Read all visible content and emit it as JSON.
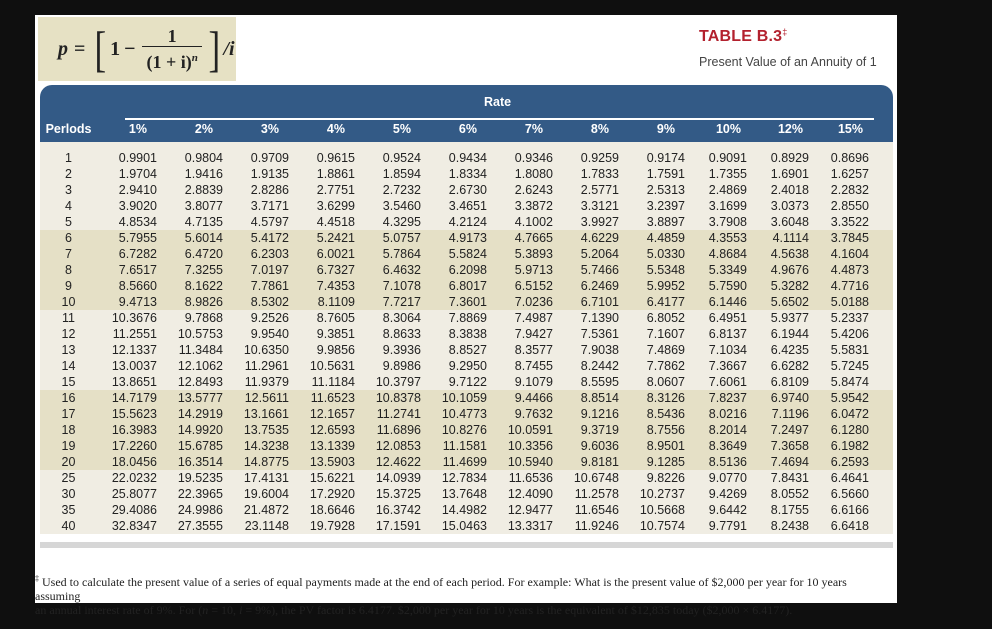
{
  "formula": {
    "lhs": "p",
    "equals": "=",
    "one": "1",
    "minus": "−",
    "numerator": "1",
    "denominator_base": "(1 + i)",
    "denominator_exp": "n",
    "tail": "/i"
  },
  "header": {
    "title": "TABLE B.3",
    "title_mark": "‡",
    "subtitle": "Present Value of an Annuity of 1"
  },
  "table": {
    "group_header": "Rate",
    "periods_header": "Perlods",
    "rates": [
      "1%",
      "2%",
      "3%",
      "4%",
      "5%",
      "6%",
      "7%",
      "8%",
      "9%",
      "10%",
      "12%",
      "15%"
    ],
    "bands": [
      {
        "shaded": false,
        "rows": [
          {
            "period": "1",
            "values": [
              "0.9901",
              "0.9804",
              "0.9709",
              "0.9615",
              "0.9524",
              "0.9434",
              "0.9346",
              "0.9259",
              "0.9174",
              "0.9091",
              "0.8929",
              "0.8696"
            ]
          },
          {
            "period": "2",
            "values": [
              "1.9704",
              "1.9416",
              "1.9135",
              "1.8861",
              "1.8594",
              "1.8334",
              "1.8080",
              "1.7833",
              "1.7591",
              "1.7355",
              "1.6901",
              "1.6257"
            ]
          },
          {
            "period": "3",
            "values": [
              "2.9410",
              "2.8839",
              "2.8286",
              "2.7751",
              "2.7232",
              "2.6730",
              "2.6243",
              "2.5771",
              "2.5313",
              "2.4869",
              "2.4018",
              "2.2832"
            ]
          },
          {
            "period": "4",
            "values": [
              "3.9020",
              "3.8077",
              "3.7171",
              "3.6299",
              "3.5460",
              "3.4651",
              "3.3872",
              "3.3121",
              "3.2397",
              "3.1699",
              "3.0373",
              "2.8550"
            ]
          },
          {
            "period": "5",
            "values": [
              "4.8534",
              "4.7135",
              "4.5797",
              "4.4518",
              "4.3295",
              "4.2124",
              "4.1002",
              "3.9927",
              "3.8897",
              "3.7908",
              "3.6048",
              "3.3522"
            ]
          }
        ]
      },
      {
        "shaded": true,
        "rows": [
          {
            "period": "6",
            "values": [
              "5.7955",
              "5.6014",
              "5.4172",
              "5.2421",
              "5.0757",
              "4.9173",
              "4.7665",
              "4.6229",
              "4.4859",
              "4.3553",
              "4.1114",
              "3.7845"
            ]
          },
          {
            "period": "7",
            "values": [
              "6.7282",
              "6.4720",
              "6.2303",
              "6.0021",
              "5.7864",
              "5.5824",
              "5.3893",
              "5.2064",
              "5.0330",
              "4.8684",
              "4.5638",
              "4.1604"
            ]
          },
          {
            "period": "8",
            "values": [
              "7.6517",
              "7.3255",
              "7.0197",
              "6.7327",
              "6.4632",
              "6.2098",
              "5.9713",
              "5.7466",
              "5.5348",
              "5.3349",
              "4.9676",
              "4.4873"
            ]
          },
          {
            "period": "9",
            "values": [
              "8.5660",
              "8.1622",
              "7.7861",
              "7.4353",
              "7.1078",
              "6.8017",
              "6.5152",
              "6.2469",
              "5.9952",
              "5.7590",
              "5.3282",
              "4.7716"
            ]
          },
          {
            "period": "10",
            "values": [
              "9.4713",
              "8.9826",
              "8.5302",
              "8.1109",
              "7.7217",
              "7.3601",
              "7.0236",
              "6.7101",
              "6.4177",
              "6.1446",
              "5.6502",
              "5.0188"
            ]
          }
        ]
      },
      {
        "shaded": false,
        "rows": [
          {
            "period": "11",
            "values": [
              "10.3676",
              "9.7868",
              "9.2526",
              "8.7605",
              "8.3064",
              "7.8869",
              "7.4987",
              "7.1390",
              "6.8052",
              "6.4951",
              "5.9377",
              "5.2337"
            ]
          },
          {
            "period": "12",
            "values": [
              "11.2551",
              "10.5753",
              "9.9540",
              "9.3851",
              "8.8633",
              "8.3838",
              "7.9427",
              "7.5361",
              "7.1607",
              "6.8137",
              "6.1944",
              "5.4206"
            ]
          },
          {
            "period": "13",
            "values": [
              "12.1337",
              "11.3484",
              "10.6350",
              "9.9856",
              "9.3936",
              "8.8527",
              "8.3577",
              "7.9038",
              "7.4869",
              "7.1034",
              "6.4235",
              "5.5831"
            ]
          },
          {
            "period": "14",
            "values": [
              "13.0037",
              "12.1062",
              "11.2961",
              "10.5631",
              "9.8986",
              "9.2950",
              "8.7455",
              "8.2442",
              "7.7862",
              "7.3667",
              "6.6282",
              "5.7245"
            ]
          },
          {
            "period": "15",
            "values": [
              "13.8651",
              "12.8493",
              "11.9379",
              "11.1184",
              "10.3797",
              "9.7122",
              "9.1079",
              "8.5595",
              "8.0607",
              "7.6061",
              "6.8109",
              "5.8474"
            ]
          }
        ]
      },
      {
        "shaded": true,
        "rows": [
          {
            "period": "16",
            "values": [
              "14.7179",
              "13.5777",
              "12.5611",
              "11.6523",
              "10.8378",
              "10.1059",
              "9.4466",
              "8.8514",
              "8.3126",
              "7.8237",
              "6.9740",
              "5.9542"
            ]
          },
          {
            "period": "17",
            "values": [
              "15.5623",
              "14.2919",
              "13.1661",
              "12.1657",
              "11.2741",
              "10.4773",
              "9.7632",
              "9.1216",
              "8.5436",
              "8.0216",
              "7.1196",
              "6.0472"
            ]
          },
          {
            "period": "18",
            "values": [
              "16.3983",
              "14.9920",
              "13.7535",
              "12.6593",
              "11.6896",
              "10.8276",
              "10.0591",
              "9.3719",
              "8.7556",
              "8.2014",
              "7.2497",
              "6.1280"
            ]
          },
          {
            "period": "19",
            "values": [
              "17.2260",
              "15.6785",
              "14.3238",
              "13.1339",
              "12.0853",
              "11.1581",
              "10.3356",
              "9.6036",
              "8.9501",
              "8.3649",
              "7.3658",
              "6.1982"
            ]
          },
          {
            "period": "20",
            "values": [
              "18.0456",
              "16.3514",
              "14.8775",
              "13.5903",
              "12.4622",
              "11.4699",
              "10.5940",
              "9.8181",
              "9.1285",
              "8.5136",
              "7.4694",
              "6.2593"
            ]
          }
        ]
      },
      {
        "shaded": false,
        "rows": [
          {
            "period": "25",
            "values": [
              "22.0232",
              "19.5235",
              "17.4131",
              "15.6221",
              "14.0939",
              "12.7834",
              "11.6536",
              "10.6748",
              "9.8226",
              "9.0770",
              "7.8431",
              "6.4641"
            ]
          },
          {
            "period": "30",
            "values": [
              "25.8077",
              "22.3965",
              "19.6004",
              "17.2920",
              "15.3725",
              "13.7648",
              "12.4090",
              "11.2578",
              "10.2737",
              "9.4269",
              "8.0552",
              "6.5660"
            ]
          },
          {
            "period": "35",
            "values": [
              "29.4086",
              "24.9986",
              "21.4872",
              "18.6646",
              "16.3742",
              "14.4982",
              "12.9477",
              "11.6546",
              "10.5668",
              "9.6442",
              "8.1755",
              "6.6166"
            ]
          },
          {
            "period": "40",
            "values": [
              "32.8347",
              "27.3555",
              "23.1148",
              "19.7928",
              "17.1591",
              "15.0463",
              "13.3317",
              "11.9246",
              "10.7574",
              "9.7791",
              "8.2438",
              "6.6418"
            ]
          }
        ]
      }
    ]
  },
  "footnote": {
    "mark": "‡",
    "line1": "Used to calculate the present value of a series of equal payments made at the end of each period. For example: What is the present value of $2,000 per year for 10 years assuming",
    "line2_a": "an annual interest rate of 9%. For (",
    "n_var": "n",
    "line2_b": " = 10, ",
    "i_var": "i",
    "line2_c": " = 9%), the PV factor is 6.4177. $2,000 per year for 10 years is the equivalent of $12,835 today ($2,000 × 6.4177)."
  },
  "colors": {
    "header_bg": "#335a86",
    "title_red": "#b3212e",
    "formula_bg": "#e6e1c4",
    "row_light": "#f0ede3",
    "row_shaded": "#e5e0c6"
  }
}
